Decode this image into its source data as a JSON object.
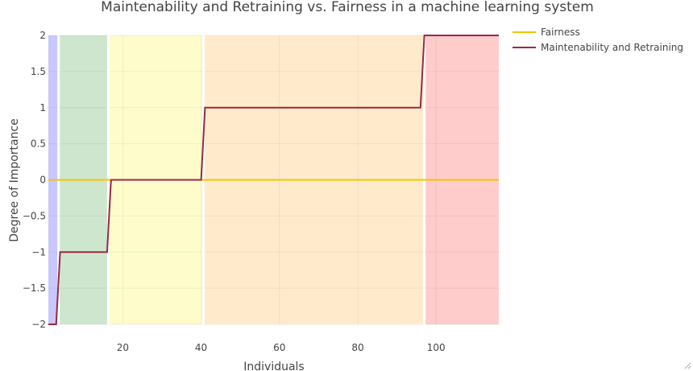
{
  "chart_data": {
    "type": "line",
    "title": "Maintenability and Retraining vs. Fairness in a machine learning system",
    "xlabel": "Individuals",
    "ylabel": "Degree of Importance",
    "xlim": [
      1,
      116
    ],
    "ylim": [
      -2,
      2
    ],
    "x_ticks": [
      20,
      40,
      60,
      80,
      100
    ],
    "x_tick_labels": [
      "20",
      "40",
      "60",
      "80",
      "100"
    ],
    "y_ticks": [
      2,
      1.5,
      1,
      0.5,
      0,
      -0.5,
      -1,
      -1.5,
      -2
    ],
    "y_tick_labels": [
      "2",
      "1.5",
      "1",
      "0.5",
      "0",
      "−0.5",
      "−1",
      "−1.5",
      "−2"
    ],
    "grid": true,
    "legend_position": "top-right",
    "bands": [
      {
        "x0": 1,
        "x1": 3.6,
        "color": "#c8c8ff"
      },
      {
        "x0": 3.6,
        "x1": 16.3,
        "color": "#cde6cd"
      },
      {
        "x0": 16.3,
        "x1": 40.6,
        "color": "#fffccc"
      },
      {
        "x0": 40.6,
        "x1": 97,
        "color": "#ffebcc"
      },
      {
        "x0": 97,
        "x1": 116,
        "color": "#ffcccc"
      }
    ],
    "band_dividers": [
      3.6,
      16.3,
      40.6,
      97
    ],
    "series": [
      {
        "name": "Fairness",
        "color": "#f5c400",
        "x": [
          1,
          116
        ],
        "y": [
          0,
          0
        ]
      },
      {
        "name": "Maintenability and Retraining",
        "color": "#9b2742",
        "x": [
          1,
          3,
          4,
          16,
          17,
          40,
          41,
          96,
          97,
          116
        ],
        "y": [
          -2,
          -2,
          -1,
          -1,
          0,
          0,
          1,
          1,
          2,
          2
        ]
      }
    ]
  }
}
